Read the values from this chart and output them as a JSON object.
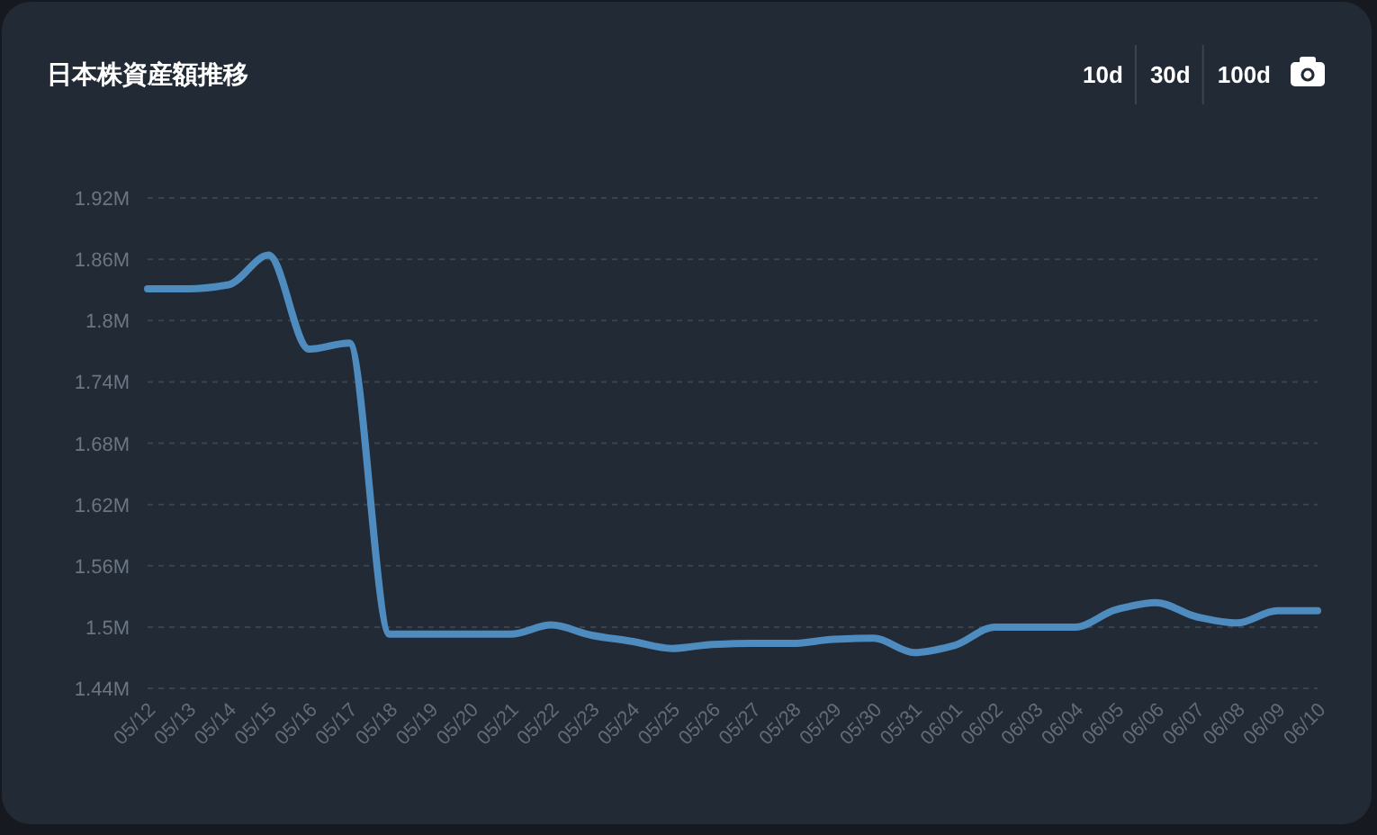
{
  "chart_data": {
    "type": "line",
    "title": "日本株資産額推移",
    "categories": [
      "05/12",
      "05/13",
      "05/14",
      "05/15",
      "05/16",
      "05/17",
      "05/18",
      "05/19",
      "05/20",
      "05/21",
      "05/22",
      "05/23",
      "05/24",
      "05/25",
      "05/26",
      "05/27",
      "05/28",
      "05/29",
      "05/30",
      "05/31",
      "06/01",
      "06/02",
      "06/03",
      "06/04",
      "06/05",
      "06/06",
      "06/07",
      "06/08",
      "06/09",
      "06/10"
    ],
    "series": [
      {
        "color": "#4e8bbf",
        "values": [
          1831000,
          1831000,
          1835000,
          1864000,
          1772000,
          1778000,
          1493000,
          1493000,
          1493000,
          1493000,
          1502000,
          1492000,
          1486000,
          1479000,
          1483000,
          1484000,
          1484000,
          1488000,
          1489000,
          1475000,
          1482000,
          1500000,
          1500000,
          1500000,
          1517000,
          1524000,
          1510000,
          1504000,
          1516000,
          1516000
        ]
      }
    ],
    "ylim": [
      1440000,
      1920000
    ],
    "yticks": [
      {
        "value": 1440000,
        "label": "1.44M"
      },
      {
        "value": 1500000,
        "label": "1.5M"
      },
      {
        "value": 1560000,
        "label": "1.56M"
      },
      {
        "value": 1620000,
        "label": "1.62M"
      },
      {
        "value": 1680000,
        "label": "1.68M"
      },
      {
        "value": 1740000,
        "label": "1.74M"
      },
      {
        "value": 1800000,
        "label": "1.8M"
      },
      {
        "value": 1860000,
        "label": "1.86M"
      },
      {
        "value": 1920000,
        "label": "1.92M"
      }
    ],
    "grid": "y",
    "line_style": "solid",
    "annotations": [
      "10d",
      "30d",
      "100d"
    ]
  }
}
